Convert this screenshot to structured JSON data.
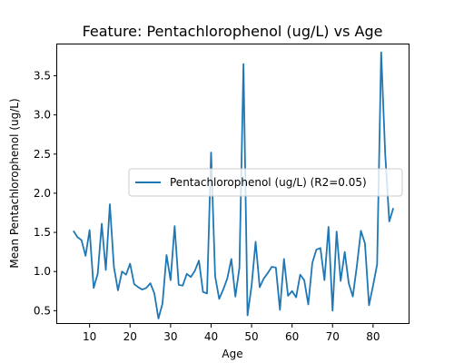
{
  "chart_data": {
    "type": "line",
    "title": "Feature: Pentachlorophenol (ug/L) vs Age",
    "xlabel": "Age",
    "ylabel": "Mean Pentachlorophenol (ug/L)",
    "xlim": [
      2,
      89
    ],
    "ylim": [
      0.33,
      3.9
    ],
    "xticks": [
      10,
      20,
      30,
      40,
      50,
      60,
      70,
      80
    ],
    "yticks": [
      0.5,
      1.0,
      1.5,
      2.0,
      2.5,
      3.0,
      3.5
    ],
    "ytick_labels": [
      "0.5",
      "1.0",
      "1.5",
      "2.0",
      "2.5",
      "3.0",
      "3.5"
    ],
    "legend_position": "center-right",
    "grid": false,
    "series": [
      {
        "name": "Pentachlorophenol (ug/L) (R2=0.05)",
        "color": "#1f77b4",
        "x": [
          6,
          7,
          8,
          9,
          10,
          11,
          12,
          13,
          14,
          15,
          16,
          17,
          18,
          19,
          20,
          21,
          22,
          23,
          24,
          25,
          26,
          27,
          28,
          29,
          30,
          31,
          32,
          33,
          34,
          35,
          36,
          37,
          38,
          39,
          40,
          41,
          42,
          43,
          44,
          45,
          46,
          47,
          48,
          49,
          50,
          51,
          52,
          53,
          54,
          55,
          56,
          57,
          58,
          59,
          60,
          61,
          62,
          63,
          64,
          65,
          66,
          67,
          68,
          69,
          70,
          71,
          72,
          73,
          74,
          75,
          76,
          77,
          78,
          79,
          80,
          81,
          82,
          83,
          84,
          85
        ],
        "values": [
          1.52,
          1.44,
          1.4,
          1.2,
          1.53,
          0.79,
          0.97,
          1.61,
          1.02,
          1.86,
          1.06,
          0.76,
          1.0,
          0.96,
          1.1,
          0.84,
          0.8,
          0.77,
          0.79,
          0.85,
          0.72,
          0.4,
          0.59,
          1.21,
          0.89,
          1.58,
          0.83,
          0.82,
          0.97,
          0.93,
          1.01,
          1.14,
          0.74,
          0.72,
          2.52,
          0.94,
          0.65,
          0.77,
          0.91,
          1.16,
          0.68,
          1.05,
          3.65,
          0.44,
          0.82,
          1.38,
          0.8,
          0.91,
          0.98,
          1.06,
          1.05,
          0.51,
          1.16,
          0.69,
          0.75,
          0.67,
          0.96,
          0.89,
          0.58,
          1.11,
          1.28,
          1.3,
          0.89,
          1.57,
          0.5,
          1.51,
          0.88,
          1.25,
          0.85,
          0.68,
          1.07,
          1.52,
          1.36,
          0.57,
          0.82,
          1.09,
          3.8,
          2.5,
          1.64,
          1.81
        ]
      }
    ]
  }
}
